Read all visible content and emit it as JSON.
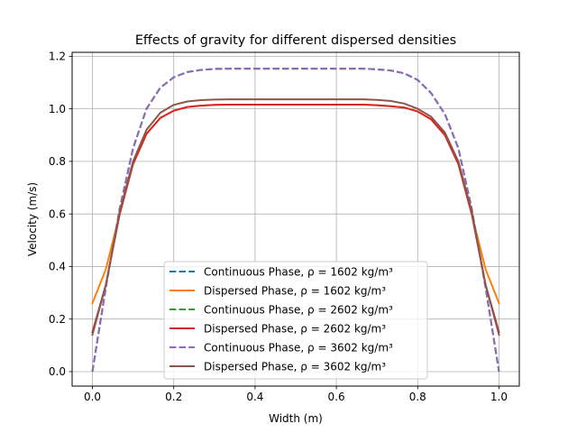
{
  "chart_data": {
    "type": "line",
    "title": "Effects of gravity for different dispersed densities",
    "xlabel": "Width (m)",
    "ylabel": "Velocity (m/s)",
    "xlim": [
      -0.05,
      1.05
    ],
    "ylim": [
      -0.055,
      1.215
    ],
    "xticks": [
      0.0,
      0.2,
      0.4,
      0.6,
      0.8,
      1.0
    ],
    "yticks": [
      0.0,
      0.2,
      0.4,
      0.6,
      0.8,
      1.0,
      1.2
    ],
    "xtick_labels": [
      "0.0",
      "0.2",
      "0.4",
      "0.6",
      "0.8",
      "1.0"
    ],
    "ytick_labels": [
      "0.0",
      "0.2",
      "0.4",
      "0.6",
      "0.8",
      "1.0",
      "1.2"
    ],
    "grid": true,
    "legend_position": "lower-center",
    "x": [
      0.0,
      0.033,
      0.067,
      0.1,
      0.133,
      0.167,
      0.2,
      0.233,
      0.267,
      0.3,
      0.333,
      0.367,
      0.4,
      0.433,
      0.467,
      0.5,
      0.533,
      0.567,
      0.6,
      0.633,
      0.667,
      0.7,
      0.733,
      0.767,
      0.8,
      0.833,
      0.867,
      0.9,
      0.933,
      0.967,
      1.0
    ],
    "series": [
      {
        "name": "Continuous Phase, ρ = 1602 kg/m³",
        "color": "#1f77b4",
        "dashed": true,
        "values": [
          0.0,
          0.32,
          0.62,
          0.85,
          1.0,
          1.08,
          1.12,
          1.14,
          1.148,
          1.152,
          1.153,
          1.153,
          1.153,
          1.153,
          1.153,
          1.153,
          1.153,
          1.153,
          1.153,
          1.153,
          1.153,
          1.15,
          1.146,
          1.135,
          1.11,
          1.06,
          0.98,
          0.85,
          0.62,
          0.32,
          0.0
        ]
      },
      {
        "name": "Dispersed Phase, ρ = 1602 kg/m³",
        "color": "#ff7f0e",
        "dashed": false,
        "values": [
          0.26,
          0.39,
          0.6,
          0.79,
          0.905,
          0.965,
          0.993,
          1.007,
          1.012,
          1.015,
          1.016,
          1.016,
          1.016,
          1.016,
          1.016,
          1.016,
          1.016,
          1.016,
          1.016,
          1.016,
          1.016,
          1.014,
          1.01,
          1.005,
          0.99,
          0.96,
          0.9,
          0.79,
          0.6,
          0.39,
          0.26
        ]
      },
      {
        "name": "Continuous Phase, ρ = 2602 kg/m³",
        "color": "#2ca02c",
        "dashed": true,
        "values": [
          0.0,
          0.32,
          0.62,
          0.85,
          1.0,
          1.08,
          1.12,
          1.14,
          1.148,
          1.152,
          1.153,
          1.153,
          1.153,
          1.153,
          1.153,
          1.153,
          1.153,
          1.153,
          1.153,
          1.153,
          1.153,
          1.15,
          1.146,
          1.135,
          1.11,
          1.06,
          0.98,
          0.85,
          0.62,
          0.32,
          0.0
        ]
      },
      {
        "name": "Dispersed Phase, ρ = 2602 kg/m³",
        "color": "#d62728",
        "dashed": false,
        "values": [
          0.15,
          0.33,
          0.6,
          0.79,
          0.905,
          0.965,
          0.993,
          1.007,
          1.012,
          1.015,
          1.016,
          1.016,
          1.016,
          1.016,
          1.016,
          1.016,
          1.016,
          1.016,
          1.016,
          1.016,
          1.016,
          1.014,
          1.01,
          1.005,
          0.99,
          0.96,
          0.9,
          0.79,
          0.6,
          0.33,
          0.15
        ]
      },
      {
        "name": "Continuous Phase, ρ = 3602 kg/m³",
        "color": "#9467bd",
        "dashed": true,
        "values": [
          0.0,
          0.32,
          0.62,
          0.85,
          1.0,
          1.08,
          1.12,
          1.14,
          1.148,
          1.152,
          1.153,
          1.153,
          1.153,
          1.153,
          1.153,
          1.153,
          1.153,
          1.153,
          1.153,
          1.153,
          1.153,
          1.15,
          1.146,
          1.135,
          1.11,
          1.06,
          0.98,
          0.85,
          0.62,
          0.32,
          0.0
        ]
      },
      {
        "name": "Dispersed Phase, ρ = 3602 kg/m³",
        "color": "#8c564b",
        "dashed": false,
        "values": [
          0.14,
          0.33,
          0.61,
          0.8,
          0.92,
          0.985,
          1.015,
          1.028,
          1.033,
          1.035,
          1.036,
          1.036,
          1.036,
          1.036,
          1.036,
          1.036,
          1.036,
          1.036,
          1.036,
          1.036,
          1.036,
          1.034,
          1.03,
          1.02,
          1.0,
          0.97,
          0.91,
          0.8,
          0.61,
          0.33,
          0.14
        ]
      }
    ]
  }
}
